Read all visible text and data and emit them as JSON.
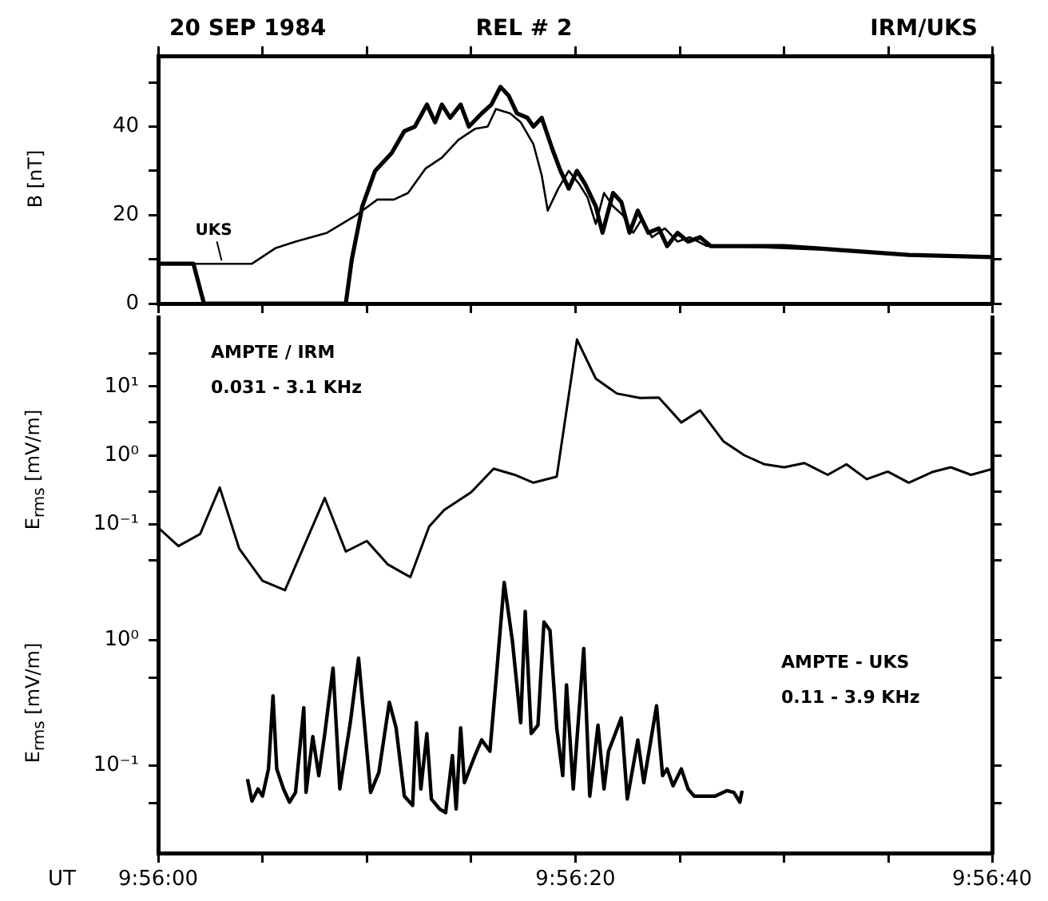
{
  "chart_data": [
    {
      "type": "line",
      "title": "REL # 2",
      "subtitle": "20 SEP 1984",
      "annotations": [
        "IRM/UKS"
      ],
      "ylabel": "B [nT]",
      "xlim": [
        9.93333,
        9.94444
      ],
      "xticks": [
        9.93333,
        9.93472,
        9.93611,
        9.9375,
        9.93889,
        9.94028,
        9.94167,
        9.94306,
        9.94444
      ],
      "ylim": [
        0,
        56
      ],
      "yticks": [
        0,
        {
          "value": 10,
          "label": null
        },
        20,
        {
          "value": 30,
          "label": null
        },
        40,
        {
          "value": 50,
          "label": null
        }
      ],
      "tick_labels": "y",
      "legend": false,
      "series": [
        {
          "color": "#000000",
          "x": [
            9.93333,
            9.9338,
            9.93394,
            9.93583,
            9.93591,
            9.93605,
            9.93622,
            9.93644,
            9.93661,
            9.93675,
            9.93691,
            9.93702,
            9.93711,
            9.93722,
            9.93736,
            9.93747,
            9.93764,
            9.93777,
            9.93789,
            9.938,
            9.93811,
            9.93825,
            9.93833,
            9.93844,
            9.93858,
            9.93869,
            9.9388,
            9.93891,
            9.93902,
            9.93916,
            9.93925,
            9.93939,
            9.9395,
            9.93961,
            9.93972,
            9.93986,
            9.94,
            9.94011,
            9.94025,
            9.94039,
            9.94055,
            9.94069,
            9.94097,
            9.94167,
            9.9425,
            9.94333,
            9.94444
          ],
          "values": [
            9,
            9,
            0,
            0,
            10,
            22,
            30,
            34,
            39,
            40,
            45,
            41,
            45,
            42,
            45,
            40,
            43,
            45,
            49,
            47,
            43,
            42,
            40,
            42,
            35,
            30,
            26,
            30,
            27,
            22,
            16,
            25,
            23,
            16,
            21,
            16,
            17,
            13,
            16,
            14,
            15,
            13,
            13,
            13,
            12,
            11,
            10.5
          ]
        },
        {
          "name": "UKS",
          "color": "#000000",
          "x": [
            9.93333,
            9.93458,
            9.93489,
            9.93516,
            9.93558,
            9.93597,
            9.93625,
            9.93647,
            9.93666,
            9.93689,
            9.93711,
            9.93733,
            9.93755,
            9.93772,
            9.93783,
            9.93802,
            9.93816,
            9.93833,
            9.93844,
            9.93852,
            9.93866,
            9.9388,
            9.93894,
            9.93905,
            9.93916,
            9.93927,
            9.93939,
            9.93952,
            9.93966,
            9.93977,
            9.93991,
            9.94008,
            9.94025,
            9.94041,
            9.94064,
            9.94097,
            9.94167,
            9.9425,
            9.94333,
            9.94444
          ],
          "values": [
            9,
            9,
            12.5,
            14,
            16,
            20,
            23.5,
            23.5,
            25,
            30.5,
            33,
            37,
            39.5,
            40,
            44,
            43,
            41,
            36,
            29,
            21,
            26,
            30,
            27,
            24,
            18,
            25,
            22,
            20,
            16,
            19,
            15,
            17,
            14,
            15,
            13,
            13,
            12.5,
            12,
            11,
            10.5
          ]
        }
      ]
    },
    {
      "type": "line",
      "annotations": [
        "AMPTE / IRM",
        "0.031 - 3.1 KHz"
      ],
      "ylabel": "E$_{rms}$ [mV/m]",
      "xlim": [
        9.93333,
        9.94444
      ],
      "ylim": [
        0.01,
        100
      ],
      "yticks": [
        {
          "value": 0.03,
          "label": null
        },
        {
          "value": 0.1,
          "label": "10⁻¹"
        },
        {
          "value": 0.3,
          "label": null
        },
        {
          "value": 1,
          "label": "10⁰"
        },
        {
          "value": 3,
          "label": null
        },
        {
          "value": 10,
          "label": "10¹"
        },
        {
          "value": 30,
          "label": null
        }
      ],
      "log": true,
      "tick_labels": "y",
      "legend": false,
      "series": [
        {
          "color": "#000000",
          "x": [
            9.93333,
            9.9336,
            9.93389,
            9.93415,
            9.93441,
            9.93472,
            9.93502,
            9.93555,
            9.93583,
            9.93611,
            9.93639,
            9.93669,
            9.93694,
            9.93714,
            9.9375,
            9.9378,
            9.93808,
            9.93833,
            9.93864,
            9.93891,
            9.93916,
            9.93944,
            9.93975,
            9.94,
            9.9403,
            9.94055,
            9.94086,
            9.94114,
            9.94141,
            9.94167,
            9.94194,
            9.94225,
            9.9425,
            9.94277,
            9.94305,
            9.94333,
            9.94364,
            9.94389,
            9.94416,
            9.94444
          ],
          "values": [
            0.089,
            0.048,
            0.072,
            0.34,
            0.044,
            0.015,
            0.011,
            0.24,
            0.04,
            0.057,
            0.026,
            0.017,
            0.092,
            0.16,
            0.29,
            0.64,
            0.52,
            0.4,
            0.49,
            48,
            13,
            7.9,
            6.8,
            6.9,
            3.0,
            4.5,
            1.6,
            1.0,
            0.74,
            0.67,
            0.77,
            0.52,
            0.74,
            0.45,
            0.58,
            0.4,
            0.57,
            0.67,
            0.52,
            0.63
          ]
        }
      ]
    },
    {
      "type": "line",
      "annotations": [
        "AMPTE - UKS",
        "0.11 - 3.9 KHz"
      ],
      "ylabel": "E$_{rms}$ [mV/m]",
      "xlabel": "UT",
      "xlim": [
        9.93333,
        9.94444
      ],
      "xticks": [
        {
          "value": 9.93333,
          "label": "9:56:00"
        },
        {
          "value": 9.93472,
          "label": null
        },
        {
          "value": 9.93611,
          "label": null
        },
        {
          "value": 9.9375,
          "label": null
        },
        {
          "value": 9.93889,
          "label": "9:56:20"
        },
        {
          "value": 9.94028,
          "label": null
        },
        {
          "value": 9.94167,
          "label": null
        },
        {
          "value": 9.94306,
          "label": null
        },
        {
          "value": 9.94444,
          "label": "9:56:40"
        }
      ],
      "ylim": [
        0.02,
        5
      ],
      "yticks": [
        {
          "value": 0.05,
          "label": null
        },
        {
          "value": 0.1,
          "label": "10⁻¹"
        },
        {
          "value": 0.5,
          "label": null
        },
        {
          "value": 1,
          "label": "10⁰"
        }
      ],
      "log": true,
      "legend": false,
      "series": [
        {
          "color": "#000000",
          "x": [
            9.93452,
            9.93458,
            9.93466,
            9.93472,
            9.9348,
            9.93486,
            9.93491,
            9.935,
            9.93508,
            9.93516,
            9.93527,
            9.9353,
            9.93539,
            9.93547,
            9.93555,
            9.93566,
            9.93575,
            9.93589,
            9.936,
            9.93616,
            9.93627,
            9.93641,
            9.9365,
            9.93661,
            9.93672,
            9.93677,
            9.93683,
            9.93691,
            9.93697,
            9.93708,
            9.93716,
            9.93725,
            9.9373,
            9.93736,
            9.93741,
            9.93755,
            9.93764,
            9.93775,
            9.93783,
            9.93794,
            9.93805,
            9.93816,
            9.93822,
            9.9383,
            9.93839,
            9.93847,
            9.93855,
            9.93864,
            9.93872,
            9.93877,
            9.93886,
            9.939,
            9.93908,
            9.93919,
            9.93927,
            9.93933,
            9.9395,
            9.93958,
            9.93972,
            9.9398,
            9.93997,
            9.94005,
            9.94011,
            9.94019,
            9.9403,
            9.94039,
            9.94047,
            9.94075,
            9.94091,
            9.941,
            9.94108,
            9.94111
          ],
          "values": [
            0.078,
            0.052,
            0.065,
            0.057,
            0.094,
            0.36,
            0.094,
            0.065,
            0.051,
            0.061,
            0.29,
            0.061,
            0.17,
            0.083,
            0.18,
            0.6,
            0.065,
            0.22,
            0.72,
            0.061,
            0.088,
            0.32,
            0.2,
            0.057,
            0.048,
            0.22,
            0.065,
            0.18,
            0.054,
            0.045,
            0.042,
            0.12,
            0.045,
            0.2,
            0.073,
            0.12,
            0.16,
            0.13,
            0.47,
            2.9,
            0.98,
            0.22,
            1.7,
            0.18,
            0.21,
            1.4,
            1.2,
            0.2,
            0.083,
            0.44,
            0.065,
            0.86,
            0.057,
            0.21,
            0.065,
            0.13,
            0.24,
            0.054,
            0.16,
            0.073,
            0.3,
            0.083,
            0.094,
            0.069,
            0.094,
            0.065,
            0.057,
            0.057,
            0.063,
            0.061,
            0.051,
            0.063
          ]
        }
      ]
    }
  ]
}
